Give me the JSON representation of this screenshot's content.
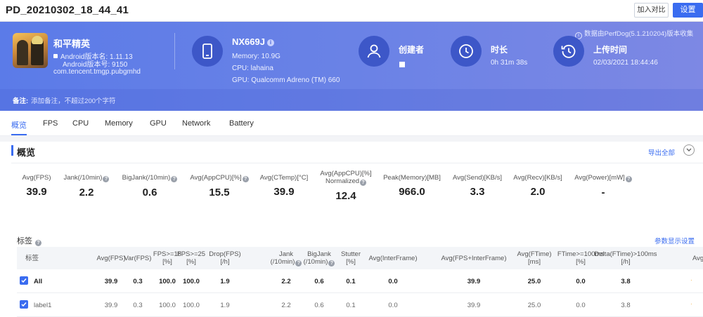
{
  "topbar": {
    "title": "PD_20210302_18_44_41",
    "compare_label": "加入对比",
    "settings_label": "设置"
  },
  "banner": {
    "source_note": "数据由PerfDog(5.1.210204)版本收集",
    "app": {
      "name": "和平精英",
      "version_name": "Android版本名: 1.11.13",
      "version_code": "Android版本号: 9150",
      "package": "com.tencent.tmgp.pubgmhd"
    },
    "device": {
      "model": "NX669J",
      "memory": "Memory: 10.9G",
      "cpu": "CPU: lahaina",
      "gpu": "GPU: Qualcomm Adreno (TM) 660"
    },
    "creator_label": "创建者",
    "duration_label": "时长",
    "duration_value": "0h 31m 38s",
    "upload_label": "上传时间",
    "upload_value": "02/03/2021 18:44:46",
    "remark_label": "备注:",
    "remark_placeholder": "添加备注，不超过200个字符",
    "colors": {
      "gradient_start": "#5b7be8",
      "gradient_end": "#7d88e4",
      "icon_circle": "#3d57c8"
    }
  },
  "tabs": [
    "概览",
    "FPS",
    "CPU",
    "Memory",
    "GPU",
    "Network",
    "Battery"
  ],
  "overview": {
    "title": "概览",
    "export_label": "导出全部",
    "metrics": [
      {
        "label": "Avg(FPS)",
        "label2": "",
        "value": "39.9",
        "help": false
      },
      {
        "label": "Jank(/10min)",
        "label2": "",
        "value": "2.2",
        "help": true
      },
      {
        "label": "BigJank(/10min)",
        "label2": "",
        "value": "0.6",
        "help": true
      },
      {
        "label": "Avg(AppCPU)[%]",
        "label2": "",
        "value": "15.5",
        "help": true
      },
      {
        "label": "Avg(CTemp)[°C]",
        "label2": "",
        "value": "39.9",
        "help": false
      },
      {
        "label": "Avg(AppCPU)[%]",
        "label2": "Normalized",
        "value": "12.4",
        "help": true
      },
      {
        "label": "Peak(Memory)[MB]",
        "label2": "",
        "value": "966.0",
        "help": false
      },
      {
        "label": "Avg(Send)[KB/s]",
        "label2": "",
        "value": "3.3",
        "help": false
      },
      {
        "label": "Avg(Recv)[KB/s]",
        "label2": "",
        "value": "2.0",
        "help": false
      },
      {
        "label": "Avg(Power)[mW]",
        "label2": "",
        "value": "-",
        "help": true
      }
    ]
  },
  "tags": {
    "title": "标签",
    "params_label": "参数显示设置",
    "columns": [
      {
        "l1": "标签",
        "l2": ""
      },
      {
        "l1": "Avg(FPS)",
        "l2": ""
      },
      {
        "l1": "Var(FPS)",
        "l2": ""
      },
      {
        "l1": "FPS>=18",
        "l2": "[%]"
      },
      {
        "l1": "FPS>=25",
        "l2": "[%]"
      },
      {
        "l1": "Drop(FPS)",
        "l2": "[/h]"
      },
      {
        "l1": "Jank",
        "l2": "(/10min)"
      },
      {
        "l1": "BigJank",
        "l2": "(/10min)"
      },
      {
        "l1": "Stutter",
        "l2": "[%]"
      },
      {
        "l1": "Avg(InterFrame)",
        "l2": ""
      },
      {
        "l1": "Avg(FPS+InterFrame)",
        "l2": ""
      },
      {
        "l1": "Avg(FTime)",
        "l2": "[ms]"
      },
      {
        "l1": "FTime>=100ms",
        "l2": "[%]"
      },
      {
        "l1": "Delta(FTime)>100ms",
        "l2": "[/h]"
      },
      {
        "l1": "Avg(A",
        "l2": ""
      }
    ],
    "rows": [
      {
        "name": "All",
        "values": [
          "39.9",
          "0.3",
          "100.0",
          "100.0",
          "1.9",
          "2.2",
          "0.6",
          "0.1",
          "0.0",
          "39.9",
          "25.0",
          "0.0",
          "3.8"
        ]
      },
      {
        "name": "label1",
        "values": [
          "39.9",
          "0.3",
          "100.0",
          "100.0",
          "1.9",
          "2.2",
          "0.6",
          "0.1",
          "0.0",
          "39.9",
          "25.0",
          "0.0",
          "3.8"
        ]
      }
    ]
  }
}
